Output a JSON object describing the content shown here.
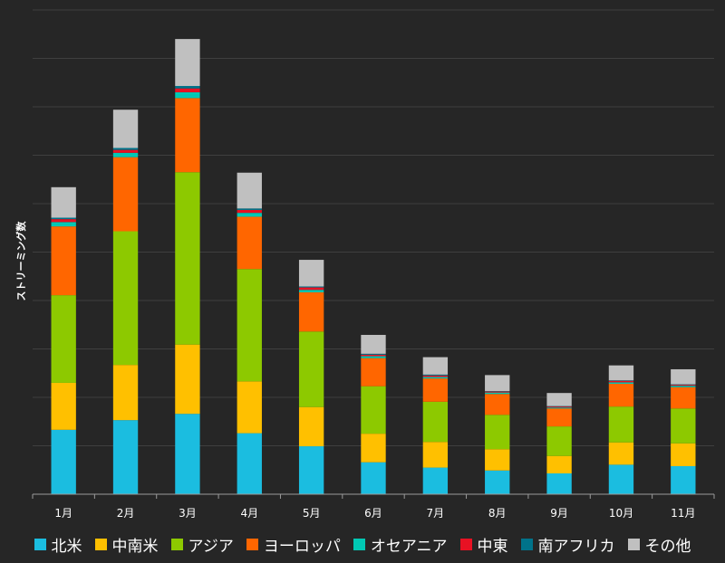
{
  "chart_data": {
    "type": "bar",
    "stacked": true,
    "categories": [
      "1月",
      "2月",
      "3月",
      "4月",
      "5月",
      "6月",
      "7月",
      "8月",
      "9月",
      "10月",
      "11月"
    ],
    "ylabel": "ストリーミング数",
    "ylim": [
      0,
      10
    ],
    "grid": true,
    "legend_position": "bottom",
    "series": [
      {
        "name": "北米",
        "color": "#1bbde0",
        "values": [
          1.33,
          1.53,
          1.66,
          1.26,
          0.99,
          0.66,
          0.55,
          0.49,
          0.43,
          0.61,
          0.58
        ]
      },
      {
        "name": "中南米",
        "color": "#ffc000",
        "values": [
          0.97,
          1.14,
          1.43,
          1.07,
          0.81,
          0.59,
          0.53,
          0.44,
          0.36,
          0.46,
          0.47
        ]
      },
      {
        "name": "アジア",
        "color": "#8dc900",
        "values": [
          1.81,
          2.76,
          3.56,
          2.32,
          1.56,
          0.98,
          0.83,
          0.71,
          0.61,
          0.74,
          0.72
        ]
      },
      {
        "name": "ヨーロッパ",
        "color": "#ff6600",
        "values": [
          1.42,
          1.53,
          1.53,
          1.08,
          0.81,
          0.58,
          0.48,
          0.43,
          0.37,
          0.47,
          0.44
        ]
      },
      {
        "name": "オセアニア",
        "color": "#00c8b4",
        "values": [
          0.09,
          0.09,
          0.12,
          0.08,
          0.05,
          0.04,
          0.03,
          0.03,
          0.02,
          0.03,
          0.03
        ]
      },
      {
        "name": "中東",
        "color": "#e81123",
        "values": [
          0.06,
          0.06,
          0.08,
          0.06,
          0.05,
          0.03,
          0.03,
          0.02,
          0.02,
          0.03,
          0.02
        ]
      },
      {
        "name": "南アフリカ",
        "color": "#00738a",
        "values": [
          0.03,
          0.04,
          0.05,
          0.03,
          0.02,
          0.02,
          0.02,
          0.01,
          0.01,
          0.01,
          0.01
        ]
      },
      {
        "name": "その他",
        "color": "#c0c0c0",
        "values": [
          0.63,
          0.79,
          0.97,
          0.74,
          0.55,
          0.39,
          0.36,
          0.33,
          0.27,
          0.31,
          0.31
        ]
      }
    ]
  }
}
